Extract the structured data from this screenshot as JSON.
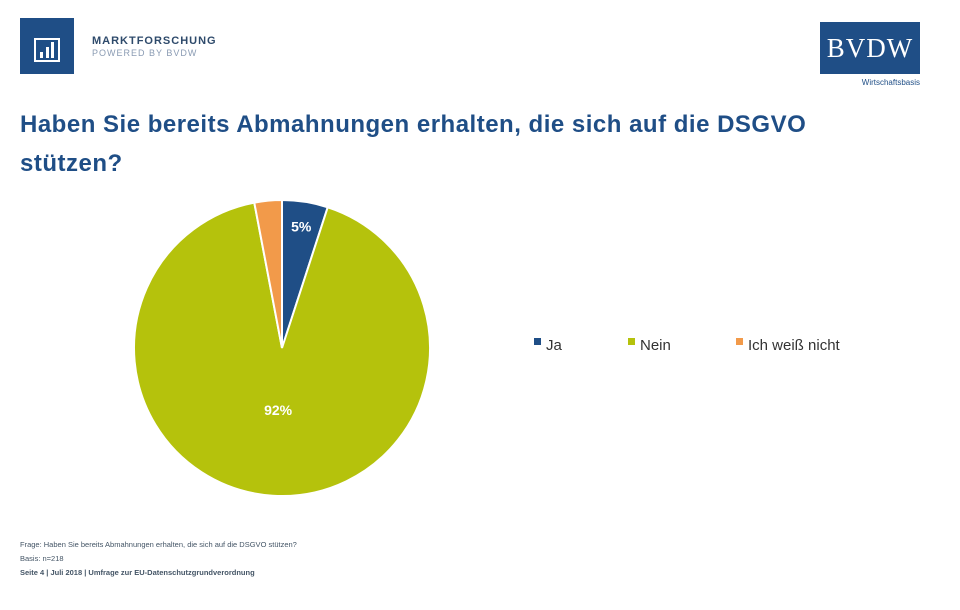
{
  "header": {
    "logo_left": {
      "line1": "MARKTFORSCHUNG",
      "line2": "POWERED BY BVDW"
    },
    "logo_right": {
      "text": "BVDW",
      "subtext": "Wirtschaftsbasis"
    }
  },
  "colors": {
    "ja": "#1f4e86",
    "nein": "#b5c20c",
    "weiss_nicht": "#f29a4a",
    "title": "#1f4e86"
  },
  "chart_data": {
    "type": "pie",
    "title": "Haben Sie bereits Abmahnungen erhalten, die sich auf die DSGVO stützen?",
    "categories": [
      "Ja",
      "Nein",
      "Ich weiß nicht"
    ],
    "values": [
      5,
      92,
      3
    ],
    "data_labels": [
      "5%",
      "92%",
      ""
    ],
    "legend_position": "right"
  },
  "footer": {
    "line1": "Frage: Haben Sie bereits Abmahnungen erhalten, die sich auf die DSGVO stützen?",
    "line2": "Basis: n=218",
    "line3": "Seite 4 | Juli 2018 | Umfrage zur EU-Datenschutzgrundverordnung"
  }
}
